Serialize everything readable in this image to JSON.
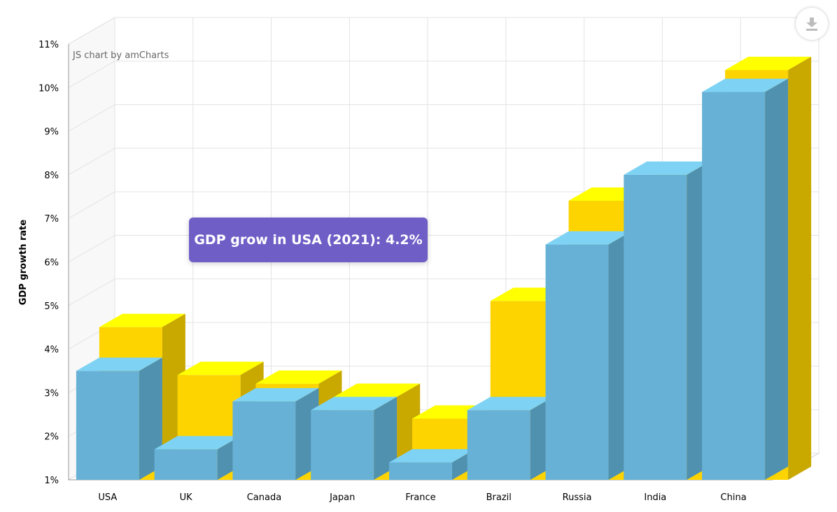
{
  "credit": "JS chart by amCharts",
  "tooltip": "GDP grow in USA (2021): 4.2%",
  "export_icon": "download-icon",
  "colors": {
    "blue": "#67b1d6",
    "blue_top": "#7ed3f4",
    "blue_side": "#5191b0",
    "yellow": "#fdd400",
    "yellow_top": "#ffff00",
    "yellow_side": "#c9a800",
    "grid": "#e3e3e3",
    "wall": "#f8f8f8"
  },
  "chart_data": {
    "type": "bar",
    "title": "",
    "xlabel": "",
    "ylabel": "GDP growth rate",
    "categories": [
      "USA",
      "UK",
      "Canada",
      "Japan",
      "France",
      "Brazil",
      "Russia",
      "India",
      "China"
    ],
    "series": [
      {
        "values": [
          4.2,
          3.1,
          2.9,
          2.6,
          2.1,
          4.8,
          7.1,
          7.6,
          10.1
        ]
      },
      {
        "values": [
          3.5,
          1.7,
          2.8,
          2.6,
          1.4,
          2.6,
          6.4,
          8.0,
          9.9
        ]
      }
    ],
    "ylim": [
      1,
      11
    ],
    "yticks": [
      "1%",
      "2%",
      "3%",
      "4%",
      "5%",
      "6%",
      "7%",
      "8%",
      "9%",
      "10%",
      "11%"
    ],
    "grid": true
  }
}
